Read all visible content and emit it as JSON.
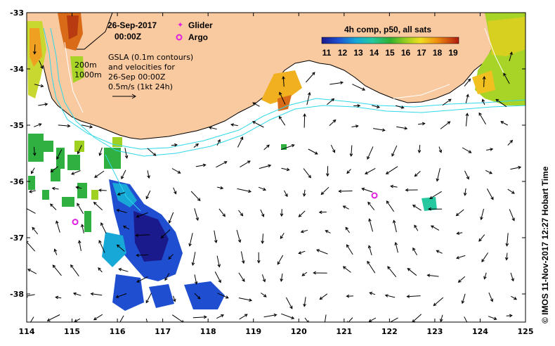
{
  "map": {
    "date_title": "26-Sep-2017",
    "time_title": "00:00Z",
    "legend_glider": "Glider",
    "legend_argo": "Argo",
    "note_lines": [
      "GSLA (0.1m contours)",
      "and velocities for",
      "26-Sep 00:00Z",
      "0.5m/s (1kt 24h)"
    ],
    "depth_200": "200m",
    "depth_1000": "1000m",
    "colorbar_title": "4h comp, p50, all sats",
    "colorbar_ticks": [
      "11",
      "12",
      "13",
      "14",
      "15",
      "16",
      "17",
      "18",
      "19"
    ],
    "credit": "© IMOS 11-Nov-2017 12:27 Hobart Time",
    "x_ticks": [
      "114",
      "115",
      "116",
      "117",
      "118",
      "119",
      "120",
      "121",
      "122",
      "123",
      "124",
      "125"
    ],
    "y_ticks": [
      "-33",
      "-34",
      "-35",
      "-36",
      "-37",
      "-38"
    ],
    "argo_floats": [
      {
        "lon": 115.07,
        "lat": -36.72
      },
      {
        "lon": 121.67,
        "lat": -36.25
      }
    ],
    "colors": {
      "land": "#f9c9a0",
      "argo": "#e020e0",
      "isobath": "#2fd8e8"
    }
  }
}
